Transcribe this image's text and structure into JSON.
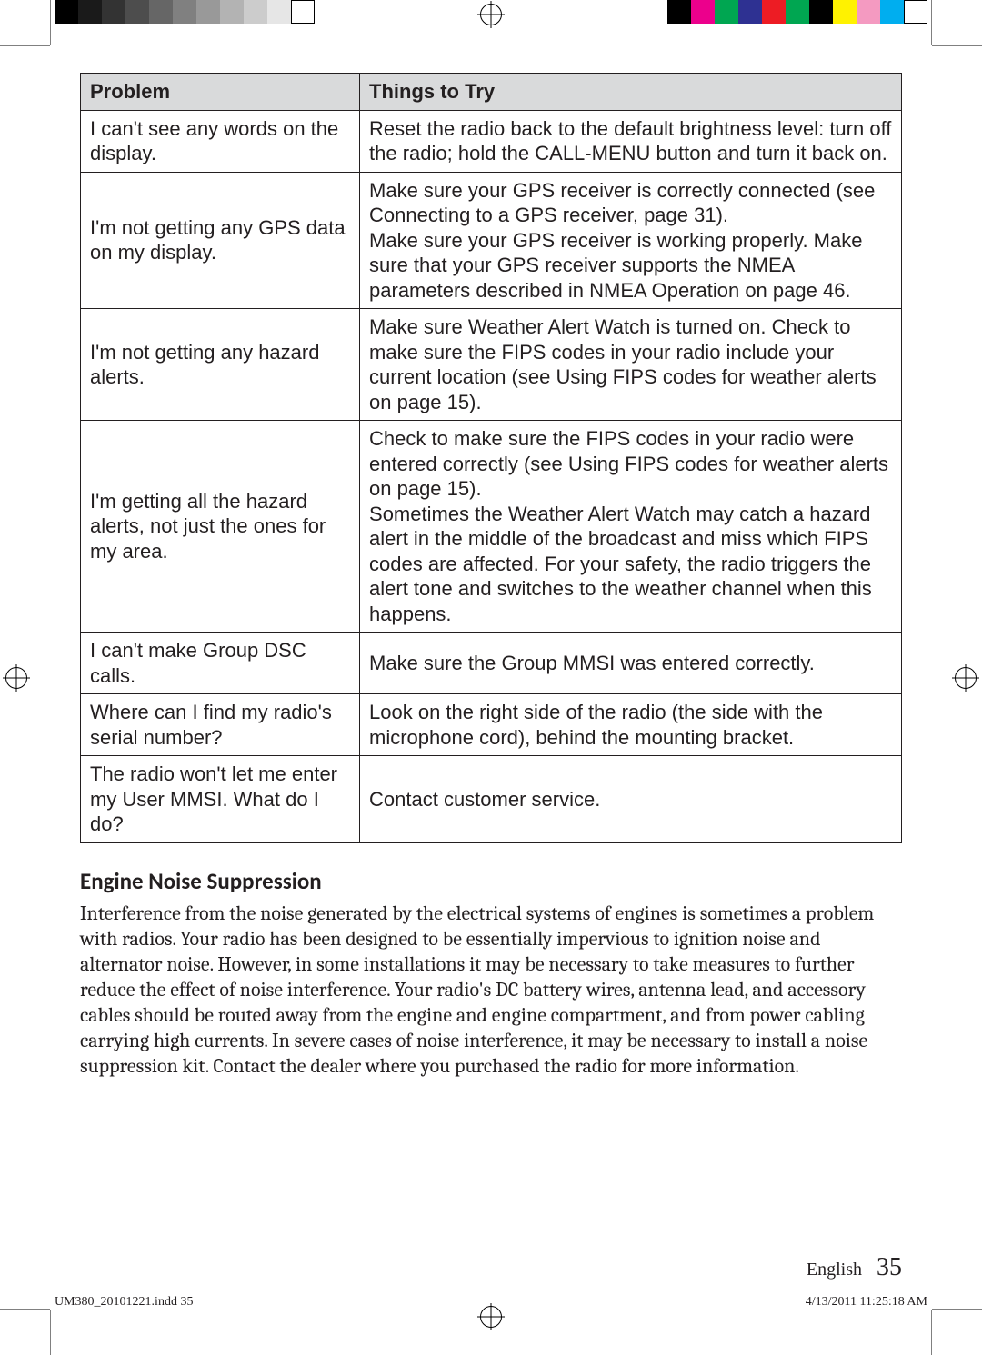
{
  "print_marks": {
    "gray_bar": [
      "#000000",
      "#1a1a1a",
      "#333333",
      "#4d4d4d",
      "#666666",
      "#808080",
      "#999999",
      "#b3b3b3",
      "#cccccc",
      "#e6e6e6",
      "#ffffff"
    ],
    "color_bar": [
      "#000000",
      "#ec008c",
      "#00a651",
      "#2e3192",
      "#ed1c24",
      "#00a651",
      "#000000",
      "#fff200",
      "#f49ac1",
      "#00aeef",
      "#ffffff"
    ]
  },
  "table": {
    "headers": {
      "problem": "Problem",
      "try": "Things to Try"
    },
    "rows": [
      {
        "problem": "I can't see any words on the display.",
        "try": "Reset the radio back to the default brightness level: turn off the radio; hold the CALL-MENU button and turn it back on."
      },
      {
        "problem": "I'm not getting any GPS data on my display.",
        "try": "Make sure your GPS receiver is correctly connected (see Connecting to a GPS receiver, page 31).\nMake sure your GPS receiver is working properly. Make sure that your GPS receiver supports the NMEA parameters described in NMEA Operation on page 46."
      },
      {
        "problem": "I'm not getting any hazard alerts.",
        "try": "Make sure Weather Alert Watch is turned on. Check to make sure the FIPS codes in your radio include your current location (see Using FIPS codes for weather alerts on page 15)."
      },
      {
        "problem": "I'm getting all the hazard alerts, not just the ones for my area.",
        "try": "Check to make sure the FIPS codes in your radio were entered correctly (see Using FIPS codes for weather alerts on page 15).\nSometimes the Weather Alert Watch may catch a hazard alert in the middle of the broadcast and miss which FIPS codes are affected. For your safety, the radio triggers the alert tone and switches to the weather channel when this happens."
      },
      {
        "problem": "I can't make Group DSC calls.",
        "try": "Make sure the Group MMSI was entered correctly."
      },
      {
        "problem": "Where can I find my radio's serial number?",
        "try": "Look on the right side of the radio (the side with the microphone cord), behind the mounting bracket."
      },
      {
        "problem": "The radio won't let me enter my User MMSI. What do I do?",
        "try": "Contact customer service."
      }
    ]
  },
  "section": {
    "title": "Engine Noise Suppression",
    "body": "Interference from the noise generated by the electrical systems of engines is sometimes a problem with radios. Your radio has been designed to be essentially impervious to ignition noise and alternator noise. However, in some installations it may be necessary to take measures to further reduce the effect of noise interference. Your radio's DC battery wires, antenna lead, and accessory cables should be routed away from the engine and engine compartment, and from power cabling carrying high currents. In severe cases of noise interference, it may be necessary to install a noise suppression kit. Contact the dealer where you purchased the radio for more information."
  },
  "footer": {
    "language": "English",
    "page_number": "35",
    "indd": "UM380_20101221.indd   35",
    "timestamp": "4/13/2011   11:25:18 AM"
  }
}
